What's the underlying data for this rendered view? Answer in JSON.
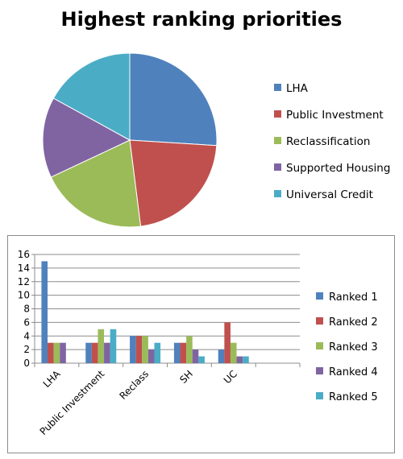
{
  "colors": {
    "blue": "#4f81bd",
    "red": "#c0504d",
    "green": "#9bbb59",
    "purple": "#8064a2",
    "cyan": "#4bacc6",
    "grid": "#8c8c8c",
    "axis": "#8c8c8c"
  },
  "chart_data": [
    {
      "type": "pie",
      "title": "Highest ranking priorities",
      "categories": [
        "LHA",
        "Public Investment",
        "Reclassification",
        "Supported Housing",
        "Universal Credit"
      ],
      "values": [
        26,
        22,
        20,
        15,
        17
      ],
      "legend_position": "right"
    },
    {
      "type": "bar",
      "title": "",
      "categories": [
        "LHA",
        "Public Investment",
        "Reclass",
        "SH",
        "UC",
        ""
      ],
      "series": [
        {
          "name": "Ranked 1",
          "values": [
            15,
            3,
            4,
            3,
            2,
            null
          ]
        },
        {
          "name": "Ranked 2",
          "values": [
            3,
            3,
            4,
            3,
            6,
            null
          ]
        },
        {
          "name": "Ranked 3",
          "values": [
            3,
            5,
            4,
            4,
            3,
            null
          ]
        },
        {
          "name": "Ranked 4",
          "values": [
            3,
            3,
            2,
            2,
            1,
            null
          ]
        },
        {
          "name": "Ranked 5",
          "values": [
            0,
            5,
            3,
            1,
            1,
            null
          ]
        }
      ],
      "ylim": [
        0,
        16
      ],
      "yticks": [
        0,
        2,
        4,
        6,
        8,
        10,
        12,
        14,
        16
      ],
      "grid": true,
      "legend_position": "right"
    }
  ]
}
